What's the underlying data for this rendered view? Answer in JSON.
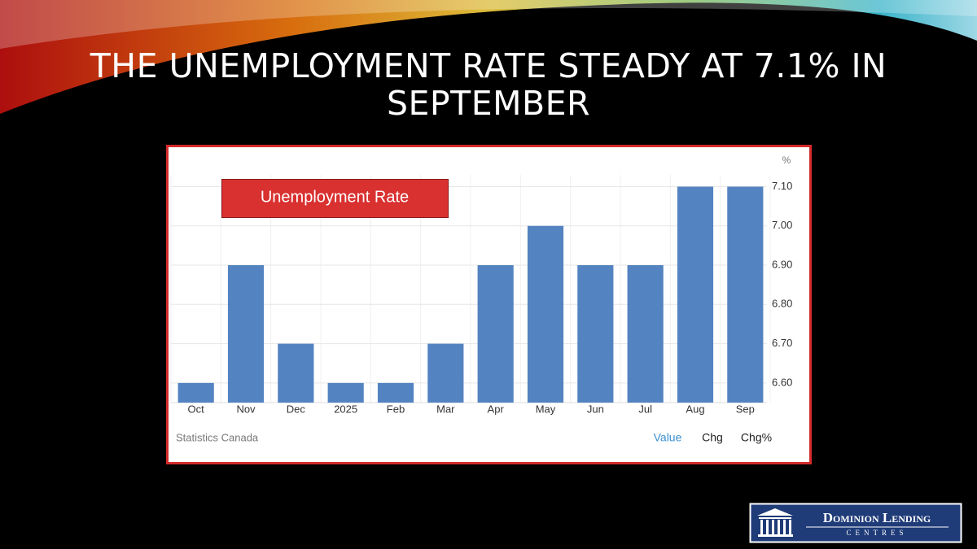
{
  "chart_data": {
    "type": "bar",
    "title": "THE UNEMPLOYMENT RATE STEADY AT 7.1% IN SEPTEMBER",
    "unit": "%",
    "categories": [
      "Oct",
      "Nov",
      "Dec",
      "2025",
      "Feb",
      "Mar",
      "Apr",
      "May",
      "Jun",
      "Jul",
      "Aug",
      "Sep"
    ],
    "series": [
      {
        "name": "Unemployment Rate",
        "color": "#5383c1",
        "values": [
          6.6,
          6.9,
          6.7,
          6.6,
          6.6,
          6.7,
          6.9,
          7.0,
          6.9,
          6.9,
          7.1,
          7.1
        ]
      }
    ],
    "ylim": [
      6.55,
      7.13
    ],
    "yticks": [
      {
        "value": 6.6,
        "label": "6.60"
      },
      {
        "value": 6.7,
        "label": "6.70"
      },
      {
        "value": 6.8,
        "label": "6.80"
      },
      {
        "value": 6.9,
        "label": "6.90"
      },
      {
        "value": 7.0,
        "label": "7.00"
      },
      {
        "value": 7.1,
        "label": "7.10"
      }
    ],
    "grid": true,
    "axis_side": "right",
    "source": "Statistics Canada",
    "tabs": [
      "Value",
      "Chg",
      "Chg%"
    ]
  },
  "logo": {
    "name": "Dominion Lending",
    "subtitle": "CENTRES"
  }
}
